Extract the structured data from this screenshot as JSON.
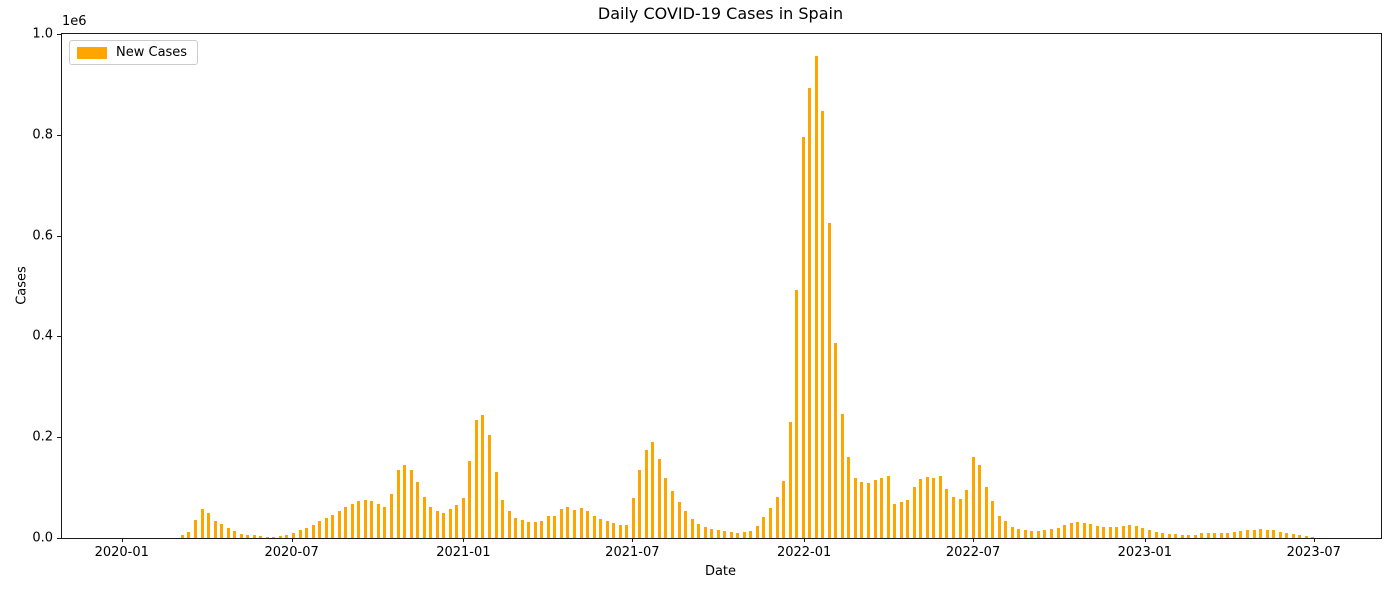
{
  "chart_data": {
    "type": "bar",
    "title": "Daily COVID-19 Cases in Spain",
    "xlabel": "Date",
    "ylabel": "Cases",
    "offset_text": "1e6",
    "bar_color": "#FFA500",
    "text_color": "#000000",
    "background_color": "#ffffff",
    "grid": false,
    "legend": {
      "position": "upper left",
      "entries": [
        "New Cases"
      ]
    },
    "ylim": [
      0,
      1000000
    ],
    "yticks": [
      {
        "value": 0,
        "label": "0.0"
      },
      {
        "value": 200000,
        "label": "0.2"
      },
      {
        "value": 400000,
        "label": "0.4"
      },
      {
        "value": 600000,
        "label": "0.6"
      },
      {
        "value": 800000,
        "label": "0.8"
      },
      {
        "value": 1000000,
        "label": "1.0"
      }
    ],
    "xticks": [
      {
        "date": "2020-01-01",
        "label": "2020-01"
      },
      {
        "date": "2020-07-01",
        "label": "2020-07"
      },
      {
        "date": "2021-01-01",
        "label": "2021-01"
      },
      {
        "date": "2021-07-01",
        "label": "2021-07"
      },
      {
        "date": "2022-01-01",
        "label": "2022-01"
      },
      {
        "date": "2022-07-01",
        "label": "2022-07"
      },
      {
        "date": "2023-01-01",
        "label": "2023-01"
      },
      {
        "date": "2023-07-01",
        "label": "2023-07"
      }
    ],
    "x_range": [
      "2019-10-29",
      "2023-09-11"
    ],
    "series": [
      {
        "name": "New Cases",
        "unit": "cases",
        "start_date": "2020-03-06",
        "interval_days": 7,
        "values": [
          5000,
          11000,
          36000,
          58000,
          50000,
          33000,
          27000,
          20000,
          13000,
          8000,
          6000,
          5000,
          4000,
          3000,
          3000,
          4000,
          5000,
          10000,
          16000,
          20000,
          26000,
          33000,
          40000,
          46000,
          54000,
          61000,
          67000,
          73000,
          76000,
          73000,
          68000,
          62000,
          87000,
          134000,
          145000,
          135000,
          112000,
          82000,
          62000,
          53000,
          49000,
          57000,
          66000,
          80000,
          153000,
          234000,
          245000,
          205000,
          131000,
          76000,
          53000,
          40000,
          36000,
          31000,
          31000,
          33000,
          43000,
          43000,
          58000,
          61000,
          56000,
          60000,
          53000,
          43000,
          38000,
          34000,
          30000,
          26000,
          26000,
          79000,
          135000,
          175000,
          190000,
          157000,
          119000,
          93000,
          71000,
          54000,
          38000,
          28000,
          22000,
          18000,
          16000,
          13000,
          11000,
          10000,
          11000,
          13000,
          24000,
          41000,
          60000,
          81000,
          114000,
          230000,
          492000,
          795000,
          893000,
          957000,
          848000,
          626000,
          387000,
          246000,
          160000,
          119000,
          112000,
          109000,
          116000,
          119000,
          123000,
          67000,
          72000,
          75000,
          102000,
          117000,
          122000,
          119000,
          124000,
          97000,
          81000,
          77000,
          95000,
          161000,
          145000,
          102000,
          74000,
          44000,
          34000,
          22000,
          18000,
          15000,
          13000,
          14000,
          16000,
          18000,
          20000,
          26000,
          29000,
          31000,
          30000,
          28000,
          24000,
          22000,
          21000,
          22000,
          24000,
          26000,
          24000,
          20000,
          15000,
          11000,
          9000,
          8000,
          7000,
          6000,
          5000,
          6000,
          9000,
          10000,
          10000,
          9000,
          10000,
          12000,
          14000,
          16000,
          16000,
          17000,
          15000,
          16000,
          12000,
          10000,
          8000,
          6000,
          4000,
          3000
        ]
      }
    ]
  }
}
